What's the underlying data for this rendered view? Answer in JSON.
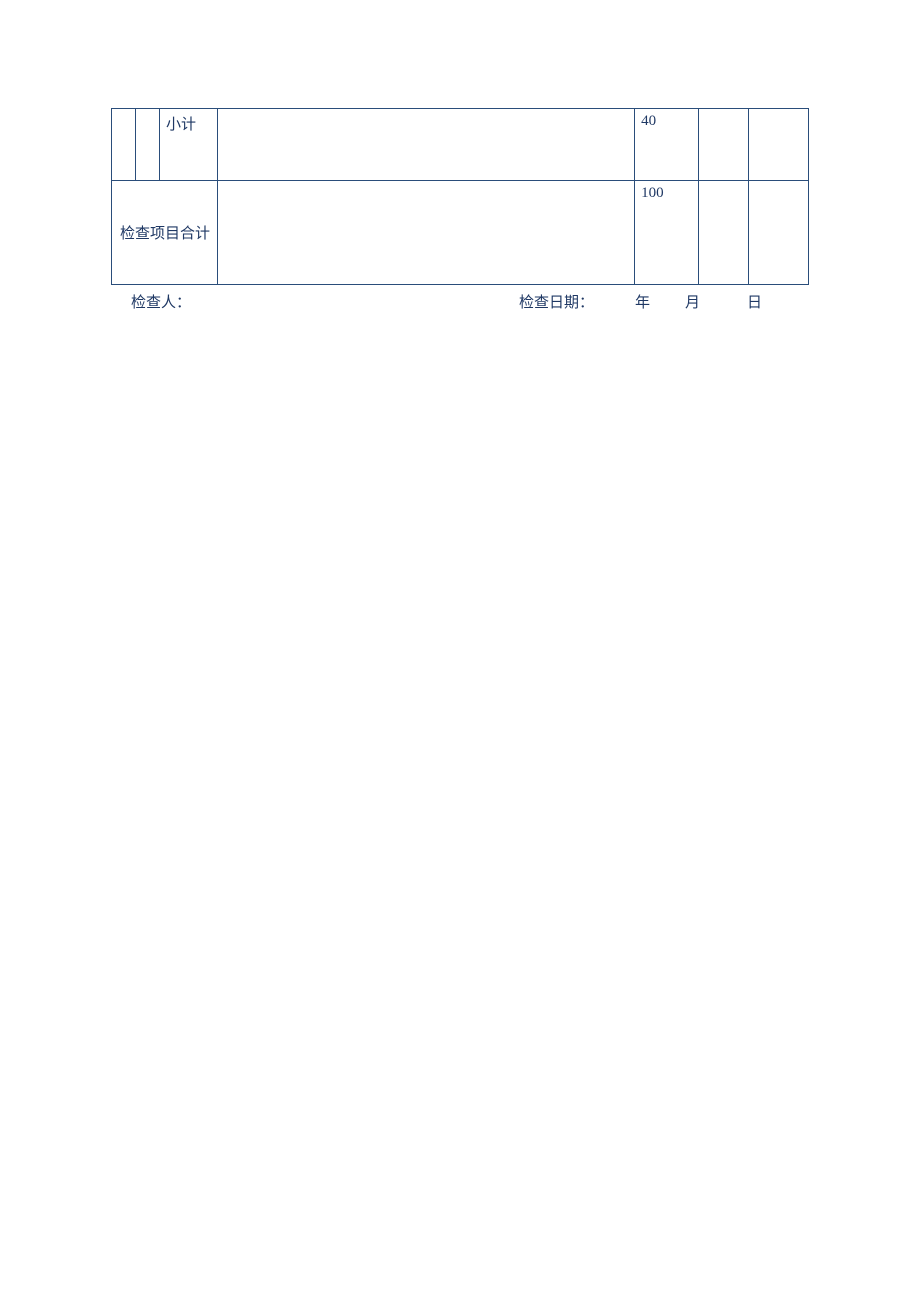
{
  "table": {
    "border_color": "#2a4d7a",
    "text_color": "#1f3864",
    "font_size": 15,
    "row1": {
      "c3": "小计",
      "c5": "40"
    },
    "row2": {
      "merged": "检查项目合计",
      "c5": "100"
    }
  },
  "footer": {
    "inspector_label": "检查人：",
    "date_label": "检查日期：",
    "year": "年",
    "month": "月",
    "day": "日"
  }
}
